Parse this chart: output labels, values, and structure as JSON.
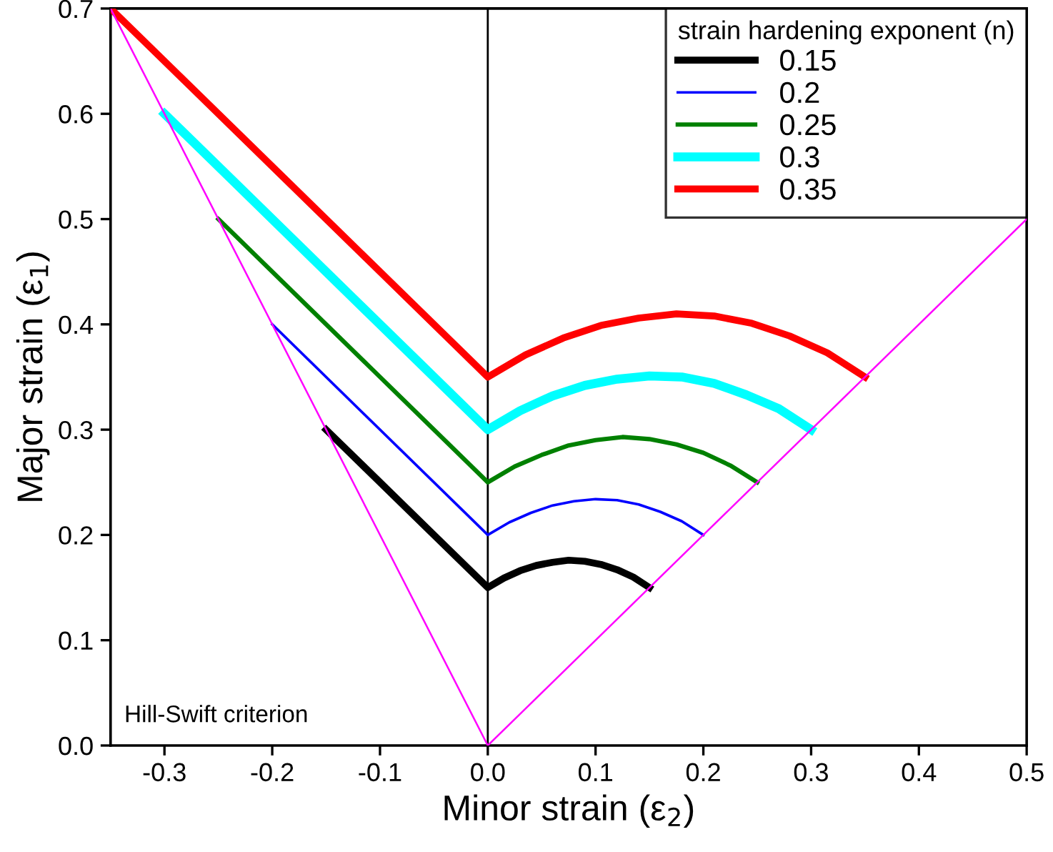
{
  "chart_data": {
    "type": "line",
    "xlabel": "Minor strain (ε$_{2}$)",
    "ylabel": "Major strain (ε$_{1}$)",
    "legend_title": "strain hardening exponent (n)",
    "legend": "top right",
    "grid": false,
    "xlim": [
      -0.35,
      0.5
    ],
    "ylim": [
      0,
      0.7
    ],
    "xticks": [
      -0.3,
      -0.2,
      -0.1,
      {
        "value": 0,
        "label": "0.0"
      },
      0.1,
      0.2,
      0.3,
      0.4,
      0.5
    ],
    "yticks": [
      {
        "value": 0,
        "label": "0.0"
      },
      0.1,
      0.2,
      0.3,
      0.4,
      0.5,
      0.6,
      0.7
    ],
    "series": [
      {
        "name": "0.15",
        "color": "#000000",
        "x": [
          -0.15,
          0,
          0.015,
          0.03,
          0.045,
          0.06,
          0.075,
          0.09,
          0.105,
          0.12,
          0.135,
          0.15
        ],
        "values": [
          0.3,
          0.15,
          0.159,
          0.166,
          0.171,
          0.174,
          0.176,
          0.175,
          0.172,
          0.167,
          0.16,
          0.15
        ]
      },
      {
        "name": "0.2",
        "color": "#0000ff",
        "x": [
          -0.2,
          0,
          0.02,
          0.04,
          0.06,
          0.08,
          0.1,
          0.12,
          0.14,
          0.16,
          0.18,
          0.2
        ],
        "values": [
          0.4,
          0.2,
          0.212,
          0.221,
          0.228,
          0.232,
          0.234,
          0.233,
          0.229,
          0.222,
          0.213,
          0.2
        ]
      },
      {
        "name": "0.25",
        "color": "#008000",
        "x": [
          -0.25,
          0,
          0.025,
          0.05,
          0.075,
          0.1,
          0.125,
          0.15,
          0.175,
          0.2,
          0.225,
          0.25
        ],
        "values": [
          0.5,
          0.25,
          0.265,
          0.276,
          0.285,
          0.29,
          0.293,
          0.291,
          0.286,
          0.278,
          0.266,
          0.25
        ]
      },
      {
        "name": "0.3",
        "color": "#00ffff",
        "x": [
          -0.3,
          0,
          0.03,
          0.06,
          0.09,
          0.12,
          0.15,
          0.18,
          0.21,
          0.24,
          0.27,
          0.3
        ],
        "values": [
          0.6,
          0.3,
          0.318,
          0.332,
          0.342,
          0.348,
          0.351,
          0.35,
          0.344,
          0.333,
          0.32,
          0.3
        ]
      },
      {
        "name": "0.35",
        "color": "#ff0000",
        "x": [
          -0.35,
          0,
          0.035,
          0.07,
          0.105,
          0.14,
          0.175,
          0.21,
          0.245,
          0.28,
          0.315,
          0.35
        ],
        "values": [
          0.7,
          0.35,
          0.371,
          0.387,
          0.399,
          0.406,
          0.41,
          0.408,
          0.401,
          0.389,
          0.373,
          0.35
        ]
      },
      {
        "color": "#ff00ff",
        "x": [
          -0.35,
          0,
          0.5
        ],
        "values": [
          0.7,
          0,
          0.5
        ]
      }
    ],
    "ref_lines": [
      {
        "axis": "x",
        "value": 0,
        "color": "#000000"
      }
    ],
    "annotations": [
      "Hill-Swift criterion"
    ]
  }
}
